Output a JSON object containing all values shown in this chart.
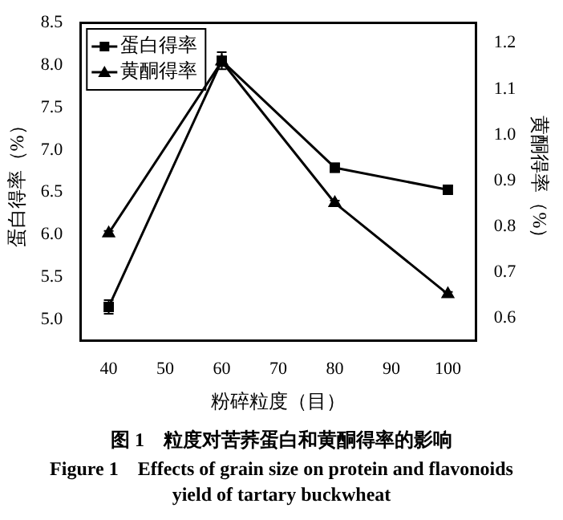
{
  "chart_data": {
    "type": "line",
    "xlabel": "粉碎粒度（目）",
    "ylabel": "蛋白得率（%）",
    "y2label": "黄酮得率（%）",
    "x": [
      40,
      60,
      80,
      100
    ],
    "series": [
      {
        "name": "蛋白得率",
        "color": "#000000",
        "marker": "square",
        "values": [
          5.15,
          8.05,
          6.79,
          6.53
        ],
        "errors": [
          0.08,
          0.1,
          0.05,
          0.04
        ]
      },
      {
        "name": "黄酮得率",
        "color": "#000000",
        "marker": "triangle",
        "axis": "y2",
        "values": [
          0.785,
          1.16,
          0.851,
          0.652
        ],
        "errors": [
          0.005,
          0.01,
          0.005,
          0.005
        ]
      }
    ],
    "xlim": [
      35,
      105
    ],
    "xticks": [
      40,
      50,
      60,
      70,
      80,
      90,
      100
    ],
    "ylim": [
      4.75,
      8.5
    ],
    "yticks": [
      {
        "value": 5,
        "label": "5.0"
      },
      5.5,
      {
        "value": 6,
        "label": "6.0"
      },
      6.5,
      {
        "value": 7,
        "label": "7.0"
      },
      7.5,
      {
        "value": 8,
        "label": "8.0"
      },
      8.5
    ],
    "y2lim": [
      0.55,
      1.245
    ],
    "y2ticks": [
      0.6,
      0.7,
      0.8,
      0.9,
      {
        "value": 1,
        "label": "1.0"
      },
      1.1,
      1.2
    ],
    "grid": false,
    "legend": "top left",
    "annotations": [
      "图 1　粒度对苦荞蛋白和黄酮得率的影响",
      "Figure 1　Effects of grain size on protein and flavonoids yield of tartary buckwheat"
    ]
  }
}
